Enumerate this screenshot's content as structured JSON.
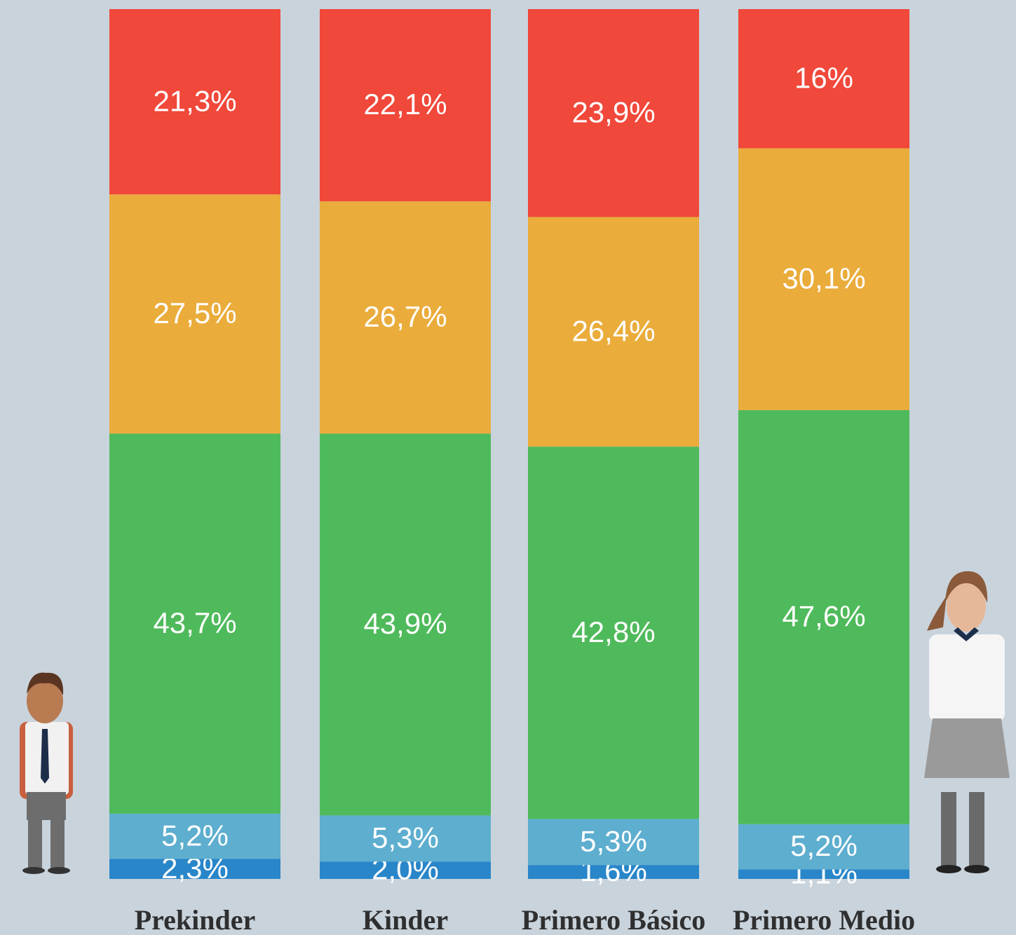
{
  "chart_data": {
    "type": "stacked_bar",
    "categories": [
      "Prekinder",
      "Kinder",
      "Primero Básico",
      "Primero Medio"
    ],
    "ylim": [
      0,
      100
    ],
    "series": [
      {
        "color": "#2986c9",
        "values": [
          2.3,
          2.0,
          1.6,
          1.1
        ],
        "value_labels": [
          "2,3%",
          "2,0%",
          "1,6%",
          "1,1%"
        ]
      },
      {
        "color": "#5eaecf",
        "values": [
          5.2,
          5.3,
          5.3,
          5.2
        ],
        "value_labels": [
          "5,2%",
          "5,3%",
          "5,3%",
          "5,2%"
        ]
      },
      {
        "color": "#4fba5b",
        "values": [
          43.7,
          43.9,
          42.8,
          47.6
        ],
        "value_labels": [
          "43,7%",
          "43,9%",
          "42,8%",
          "47,6%"
        ]
      },
      {
        "color": "#eaac3b",
        "values": [
          27.5,
          26.7,
          26.4,
          30.1
        ],
        "value_labels": [
          "27,5%",
          "26,7%",
          "26,4%",
          "30,1%"
        ]
      },
      {
        "color": "#f0483a",
        "values": [
          21.3,
          22.1,
          23.9,
          16
        ],
        "value_labels": [
          "21,3%",
          "22,1%",
          "23,9%",
          "16%"
        ]
      }
    ]
  }
}
